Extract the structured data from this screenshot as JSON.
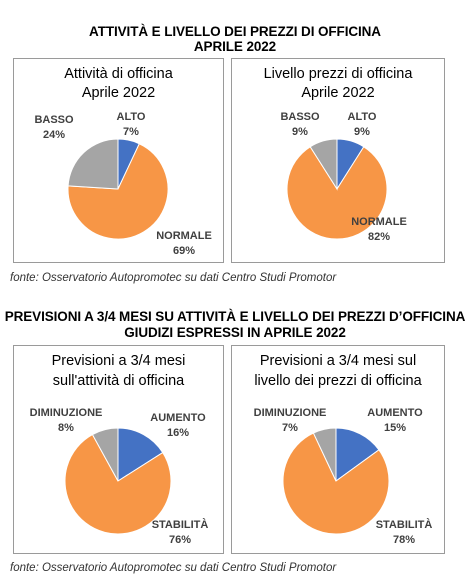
{
  "section1": {
    "title_line1": "ATTIVITÀ E LIVELLO DEI PREZZI DI OFFICINA",
    "title_line2": "APRILE 2022",
    "source": "fonte: Osservatorio Autopromotec su dati Centro Studi Promotor"
  },
  "section2": {
    "title_line1": "PREVISIONI A 3/4 MESI SU ATTIVITÀ E LIVELLO DEI PREZZI D’OFFICINA",
    "title_line2": "GIUDIZI ESPRESSI IN APRILE 2022",
    "source": "fonte: Osservatorio Autopromotec su dati Centro Studi Promotor"
  },
  "colors": {
    "blue": "#4472C4",
    "orange": "#F79646",
    "gray": "#A5A5A5"
  },
  "chart_data": [
    {
      "type": "pie",
      "title_line1": "Attività di officina",
      "title_line2": "Aprile 2022",
      "slices": [
        {
          "label": "ALTO",
          "value": 7,
          "display": "7%",
          "color": "#4472C4"
        },
        {
          "label": "NORMALE",
          "value": 69,
          "display": "69%",
          "color": "#F79646"
        },
        {
          "label": "BASSO",
          "value": 24,
          "display": "24%",
          "color": "#A5A5A5"
        }
      ]
    },
    {
      "type": "pie",
      "title_line1": "Livello prezzi di officina",
      "title_line2": "Aprile 2022",
      "slices": [
        {
          "label": "ALTO",
          "value": 9,
          "display": "9%",
          "color": "#4472C4"
        },
        {
          "label": "NORMALE",
          "value": 82,
          "display": "82%",
          "color": "#F79646"
        },
        {
          "label": "BASSO",
          "value": 9,
          "display": "9%",
          "color": "#A5A5A5"
        }
      ]
    },
    {
      "type": "pie",
      "title_line1": "Previsioni a 3/4 mesi",
      "title_line2": "sull'attività di officina",
      "slices": [
        {
          "label": "AUMENTO",
          "value": 16,
          "display": "16%",
          "color": "#4472C4"
        },
        {
          "label": "STABILITÀ",
          "value": 76,
          "display": "76%",
          "color": "#F79646"
        },
        {
          "label": "DIMINUZIONE",
          "value": 8,
          "display": "8%",
          "color": "#A5A5A5"
        }
      ]
    },
    {
      "type": "pie",
      "title_line1": "Previsioni a 3/4 mesi sul",
      "title_line2": "livello dei prezzi di officina",
      "slices": [
        {
          "label": "AUMENTO",
          "value": 15,
          "display": "15%",
          "color": "#4472C4"
        },
        {
          "label": "STABILITÀ",
          "value": 78,
          "display": "78%",
          "color": "#F79646"
        },
        {
          "label": "DIMINUZIONE",
          "value": 7,
          "display": "7%",
          "color": "#A5A5A5"
        }
      ]
    }
  ]
}
